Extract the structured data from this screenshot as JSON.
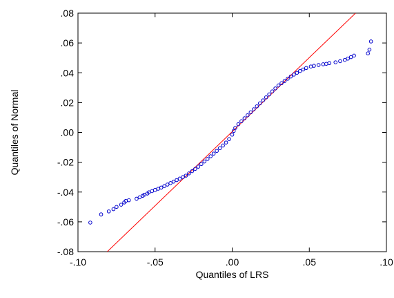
{
  "chart_data": {
    "type": "scatter",
    "title": "",
    "xlabel": "Quantiles of LRS",
    "ylabel": "Quantiles of Normal",
    "xlim": [
      -0.1,
      0.1
    ],
    "ylim": [
      -0.08,
      0.08
    ],
    "x_ticks": [
      {
        "value": -0.1,
        "label": "-.10"
      },
      {
        "value": -0.05,
        "label": "-.05"
      },
      {
        "value": 0.0,
        "label": ".00"
      },
      {
        "value": 0.05,
        "label": ".05"
      },
      {
        "value": 0.1,
        "label": ".10"
      }
    ],
    "y_ticks": [
      {
        "value": -0.08,
        "label": "-.08"
      },
      {
        "value": -0.06,
        "label": "-.06"
      },
      {
        "value": -0.04,
        "label": "-.04"
      },
      {
        "value": -0.02,
        "label": "-.02"
      },
      {
        "value": 0.0,
        "label": ".00"
      },
      {
        "value": 0.02,
        "label": ".02"
      },
      {
        "value": 0.04,
        "label": ".04"
      },
      {
        "value": 0.06,
        "label": ".06"
      },
      {
        "value": 0.08,
        "label": ".08"
      }
    ],
    "grid": false,
    "reference_line": {
      "points": [
        [
          -0.081,
          -0.08
        ],
        [
          0.08,
          0.08
        ]
      ],
      "color": "#ff0000"
    },
    "series": [
      {
        "marker": "circle-open",
        "color": "#0000cc",
        "points": [
          [
            -0.092,
            -0.0605
          ],
          [
            -0.085,
            -0.055
          ],
          [
            -0.08,
            -0.053
          ],
          [
            -0.077,
            -0.0515
          ],
          [
            -0.075,
            -0.05
          ],
          [
            -0.072,
            -0.0485
          ],
          [
            -0.07,
            -0.047
          ],
          [
            -0.069,
            -0.046
          ],
          [
            -0.067,
            -0.0455
          ],
          [
            -0.062,
            -0.0445
          ],
          [
            -0.06,
            -0.0435
          ],
          [
            -0.058,
            -0.0425
          ],
          [
            -0.057,
            -0.0418
          ],
          [
            -0.055,
            -0.041
          ],
          [
            -0.054,
            -0.0402
          ],
          [
            -0.052,
            -0.0394
          ],
          [
            -0.05,
            -0.0386
          ],
          [
            -0.048,
            -0.0378
          ],
          [
            -0.046,
            -0.037
          ],
          [
            -0.044,
            -0.036
          ],
          [
            -0.042,
            -0.035
          ],
          [
            -0.04,
            -0.034
          ],
          [
            -0.038,
            -0.033
          ],
          [
            -0.036,
            -0.032
          ],
          [
            -0.034,
            -0.031
          ],
          [
            -0.032,
            -0.03
          ],
          [
            -0.03,
            -0.029
          ],
          [
            -0.028,
            -0.0275
          ],
          [
            -0.026,
            -0.026
          ],
          [
            -0.024,
            -0.0245
          ],
          [
            -0.022,
            -0.023
          ],
          [
            -0.02,
            -0.0212
          ],
          [
            -0.018,
            -0.0195
          ],
          [
            -0.016,
            -0.0178
          ],
          [
            -0.014,
            -0.016
          ],
          [
            -0.012,
            -0.0142
          ],
          [
            -0.01,
            -0.0124
          ],
          [
            -0.008,
            -0.0106
          ],
          [
            -0.006,
            -0.0088
          ],
          [
            -0.004,
            -0.0068
          ],
          [
            -0.002,
            -0.0045
          ],
          [
            0.0,
            -0.0015
          ],
          [
            0.001,
            0.001
          ],
          [
            0.002,
            0.003
          ],
          [
            0.004,
            0.0055
          ],
          [
            0.006,
            0.0075
          ],
          [
            0.008,
            0.0095
          ],
          [
            0.01,
            0.0115
          ],
          [
            0.012,
            0.0135
          ],
          [
            0.014,
            0.0155
          ],
          [
            0.016,
            0.0175
          ],
          [
            0.018,
            0.0195
          ],
          [
            0.02,
            0.0215
          ],
          [
            0.022,
            0.0235
          ],
          [
            0.024,
            0.0255
          ],
          [
            0.026,
            0.0275
          ],
          [
            0.028,
            0.0295
          ],
          [
            0.03,
            0.0315
          ],
          [
            0.032,
            0.033
          ],
          [
            0.034,
            0.0345
          ],
          [
            0.036,
            0.036
          ],
          [
            0.038,
            0.0375
          ],
          [
            0.04,
            0.0388
          ],
          [
            0.042,
            0.04
          ],
          [
            0.044,
            0.0412
          ],
          [
            0.046,
            0.0422
          ],
          [
            0.048,
            0.0432
          ],
          [
            0.051,
            0.0442
          ],
          [
            0.053,
            0.0447
          ],
          [
            0.056,
            0.0452
          ],
          [
            0.059,
            0.0457
          ],
          [
            0.061,
            0.046
          ],
          [
            0.063,
            0.0465
          ],
          [
            0.067,
            0.047
          ],
          [
            0.07,
            0.0478
          ],
          [
            0.073,
            0.0486
          ],
          [
            0.075,
            0.0495
          ],
          [
            0.077,
            0.0505
          ],
          [
            0.079,
            0.0515
          ],
          [
            0.088,
            0.053
          ],
          [
            0.089,
            0.0555
          ],
          [
            0.09,
            0.061
          ]
        ]
      }
    ]
  }
}
